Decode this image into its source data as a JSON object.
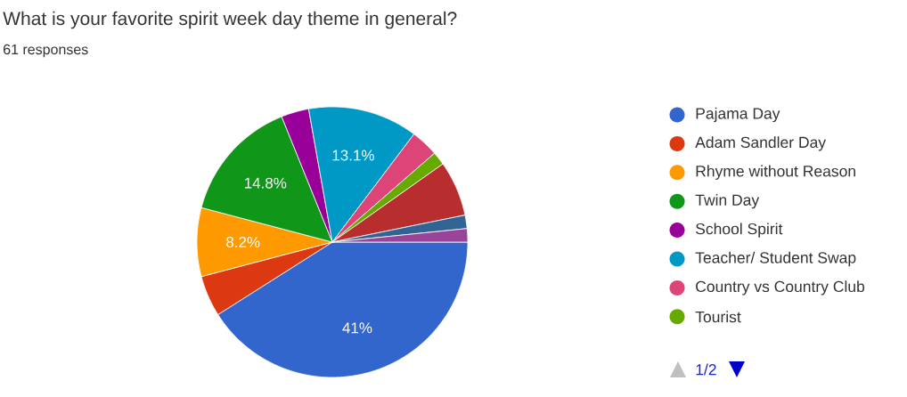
{
  "chart_data": {
    "type": "pie",
    "title": "What is your favorite spirit week day theme in general?",
    "subtitle": "61 responses",
    "categories": [
      "Pajama Day",
      "Adam Sandler Day",
      "Rhyme without Reason",
      "Twin Day",
      "School Spirit",
      "Teacher/ Student Swap",
      "Country vs Country Club",
      "Tourist",
      null,
      null,
      null
    ],
    "values": [
      41,
      4.9,
      8.2,
      14.8,
      3.3,
      13.1,
      3.3,
      1.6,
      6.6,
      1.6,
      1.6
    ],
    "value_labels": [
      "41%",
      null,
      "8.2%",
      "14.8%",
      null,
      "13.1%",
      null,
      null,
      null,
      null,
      null
    ],
    "colors": [
      "#3366cc",
      "#dc3912",
      "#ff9900",
      "#109618",
      "#990099",
      "#0099c6",
      "#dd4477",
      "#66aa00",
      "#b82e2e",
      "#316395",
      "#994499"
    ],
    "legend": "right",
    "annotations": [
      "1/2"
    ]
  }
}
